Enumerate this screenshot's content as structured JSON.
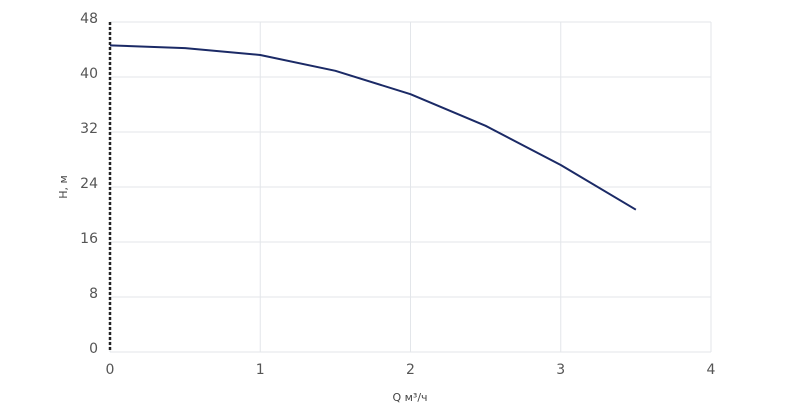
{
  "chart_data": {
    "type": "line",
    "x_label": "Q м³/ч",
    "y_label": "H, м",
    "x": [
      0,
      0.5,
      1,
      1.5,
      2,
      2.5,
      3,
      3.5
    ],
    "series": [
      {
        "color": "#1b2a66",
        "values": [
          44.6,
          44.2,
          43.2,
          40.9,
          37.5,
          32.9,
          27.2,
          20.7
        ]
      }
    ],
    "xlim": [
      0,
      4
    ],
    "xticks": [
      0,
      1,
      2,
      3,
      4
    ],
    "ylim": [
      0,
      48
    ],
    "yticks": [
      0,
      8,
      16,
      24,
      32,
      40,
      48
    ],
    "grid": true
  }
}
